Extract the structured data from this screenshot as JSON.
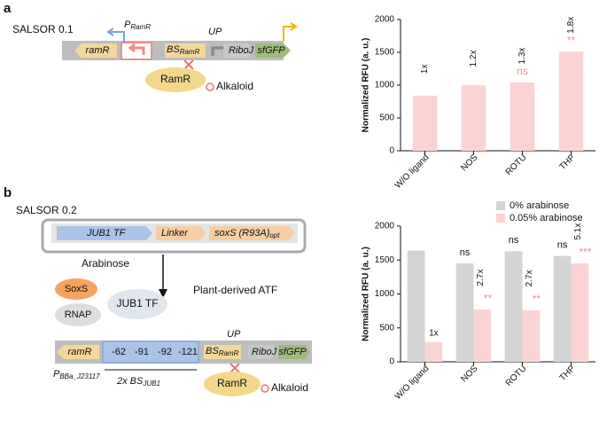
{
  "chart_data": [
    {
      "type": "bar",
      "y_label": "Normalized RFU (a. u.)",
      "categories": [
        "W/O ligand",
        "NOS",
        "ROTU",
        "THP"
      ],
      "values": [
        840,
        1000,
        1040,
        1510
      ],
      "color": "#fcd3d3",
      "fold_labels": [
        "1x",
        "1.2x",
        "1.3x",
        "1.8x"
      ],
      "sig_labels": [
        null,
        null,
        "ns",
        "**"
      ],
      "ylim": [
        0,
        2000
      ],
      "yticks": [
        0,
        500,
        1000,
        1500,
        2000
      ]
    },
    {
      "type": "grouped_bar",
      "y_label": "Normalized RFU (a. u.)",
      "categories": [
        "W/O ligand",
        "NOS",
        "ROTU",
        "THP"
      ],
      "series": [
        {
          "name": "0% arabinose",
          "color": "#d4d4d4",
          "values": [
            1640,
            1450,
            1630,
            1560
          ],
          "sig_labels": [
            null,
            "ns",
            "ns",
            "ns"
          ]
        },
        {
          "name": "0.05% arabinose",
          "color": "#fcd3d3",
          "values": [
            290,
            770,
            760,
            1450
          ],
          "fold_labels": [
            "1x",
            "2.7x",
            "2.7x",
            "5.1x"
          ],
          "sig_labels": [
            null,
            "**",
            "**",
            "***"
          ]
        }
      ],
      "ylim": [
        0,
        2000
      ],
      "yticks": [
        0,
        500,
        1000,
        1500,
        2000
      ],
      "legend": "top-right"
    }
  ],
  "diagram": {
    "panel_a": "a",
    "panel_b": "b",
    "title_a": "SALSOR 0.1",
    "title_b": "SALSOR 0.2",
    "ramR": "ramR",
    "p_ramr": {
      "main": "P",
      "sub": "RamR"
    },
    "bs_ramr": {
      "main": "BS",
      "sub": "RamR"
    },
    "up": "UP",
    "riboj": "RiboJ",
    "sfgfp": "sfGFP",
    "ramr_protein": "RamR",
    "alkaloid": "Alkaloid",
    "jub1": "JUB1 TF",
    "linker": "Linker",
    "soxs": {
      "main": "soxS (R93A)",
      "sub": "opt"
    },
    "arabinose": "Arabinose",
    "soxs_protein": "SoxS",
    "rnap": "RNAP",
    "jub1_protein": "JUB1 TF",
    "atf": "Plant-derived ATF",
    "sites": [
      "-62",
      "-91",
      "-92",
      "-121"
    ],
    "p_bba": {
      "main": "P",
      "sub": "BBa_J23117"
    },
    "bs_jub1": {
      "main": "2x BS",
      "sub": "JUB1"
    }
  }
}
